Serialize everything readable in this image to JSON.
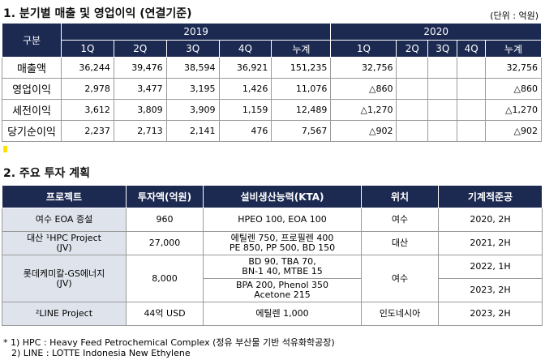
{
  "section1": {
    "title": "1. 분기별 매출 및 영업이익 (연결기준)",
    "unit": "(단위 : 억원)",
    "table": {
      "corner": "구분",
      "years": [
        "2019",
        "2020"
      ],
      "columns": [
        "1Q",
        "2Q",
        "3Q",
        "4Q",
        "누계",
        "1Q",
        "2Q",
        "3Q",
        "4Q",
        "누계"
      ],
      "rows": [
        {
          "label": "매출액",
          "cells": [
            "36,244",
            "39,476",
            "38,594",
            "36,921",
            "151,235",
            "32,756",
            null,
            null,
            null,
            "32,756"
          ]
        },
        {
          "label": "영업이익",
          "cells": [
            "2,978",
            "3,477",
            "3,195",
            "1,426",
            "11,076",
            "△860",
            null,
            null,
            null,
            "△860"
          ]
        },
        {
          "label": "세전이익",
          "cells": [
            "3,612",
            "3,809",
            "3,909",
            "1,159",
            "12,489",
            "△1,270",
            null,
            null,
            null,
            "△1,270"
          ]
        },
        {
          "label": "당기순이익",
          "cells": [
            "2,237",
            "2,713",
            "2,141",
            "476",
            "7,567",
            "△902",
            null,
            null,
            null,
            "△902"
          ]
        }
      ]
    }
  },
  "section2": {
    "title": "2. 주요 투자 계획",
    "table": {
      "headers": [
        "프로젝트",
        "투자액(억원)",
        "설비생산능력(KTA)",
        "위치",
        "기계적준공"
      ],
      "rows": [
        {
          "project": [
            "여수 EOA 증설"
          ],
          "investment": "960",
          "capacity": [
            [
              "HPEO 100, EOA 100"
            ]
          ],
          "location": "여수",
          "completion": [
            "2020, 2H"
          ]
        },
        {
          "project": [
            "대산 ¹HPC Project",
            "(JV)"
          ],
          "investment": "27,000",
          "capacity": [
            [
              "에틸렌 750, 프로필렌 400",
              "PE 850, PP 500, BD 150"
            ]
          ],
          "location": "대산",
          "completion": [
            "2021, 2H"
          ]
        },
        {
          "project": [
            "롯데케미칼-GS에너지",
            "(JV)"
          ],
          "investment": "8,000",
          "capacity": [
            [
              "BD 90, TBA 70,",
              "BN-1 40, MTBE 15"
            ],
            [
              "BPA 200, Phenol 350",
              "Acetone 215"
            ]
          ],
          "location": "여수",
          "completion": [
            "2022, 1H",
            "2023, 2H"
          ]
        },
        {
          "project": [
            "²LINE Project"
          ],
          "investment": "44억 USD",
          "capacity": [
            [
              "에틸렌 1,000"
            ]
          ],
          "location": "인도네시아",
          "completion": [
            "2023, 2H"
          ]
        }
      ]
    },
    "footnotes": [
      "* 1) HPC : Heavy Feed Petrochemical Complex (정유 부산물 기반 석유화학공장)",
      "2) LINE : LOTTE Indonesia New Ethylene"
    ]
  }
}
